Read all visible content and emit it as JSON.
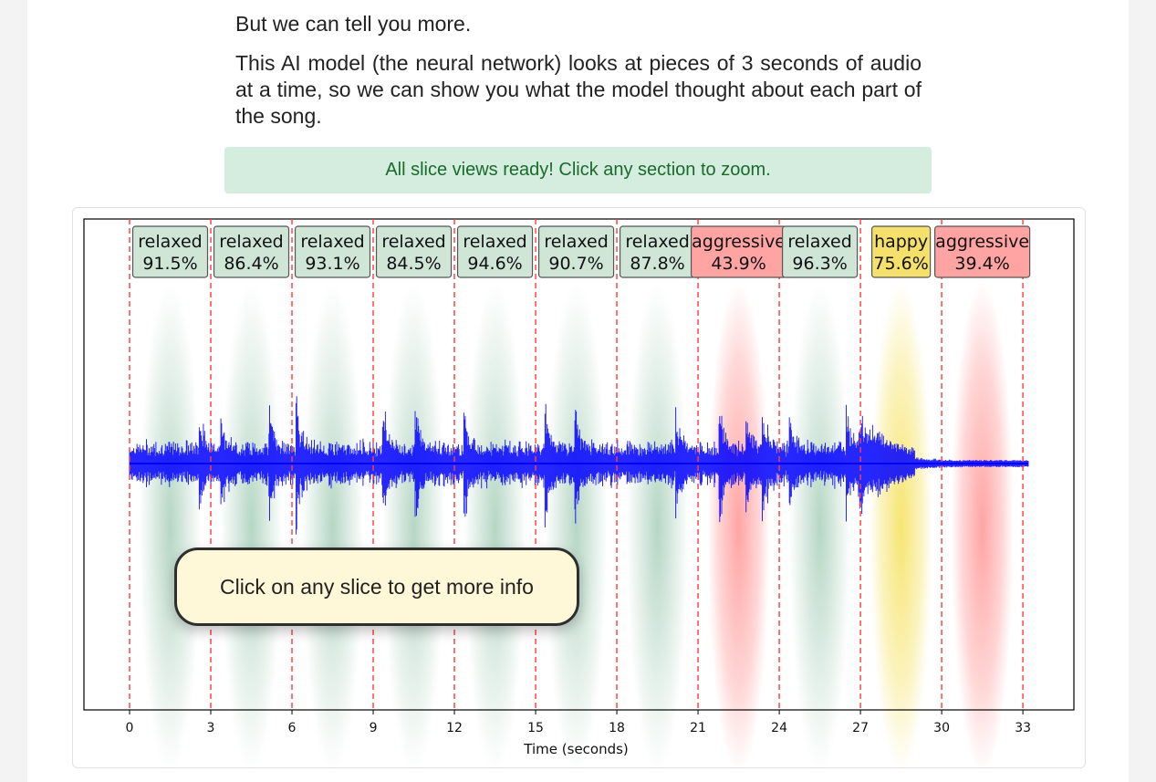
{
  "intro": {
    "line1": "But we can tell you more.",
    "line2": "This AI model (the neural network) looks at pieces of 3 seconds of audio at a time, so we can show you what the model thought about each part of the song."
  },
  "status": {
    "message": "All slice views ready! Click any section to zoom."
  },
  "tooltip": {
    "text": "Click on any slice to get more info"
  },
  "colors": {
    "relaxed": "#2e8b57",
    "aggressive": "#ff5a5a",
    "happy": "#f0d000",
    "waveform": "#0000ff",
    "slice_line": "#ff4040"
  },
  "chart_data": {
    "type": "waveform",
    "xlabel": "Time (seconds)",
    "xlim": [
      0,
      33.3
    ],
    "xticks": [
      0,
      3,
      6,
      9,
      12,
      15,
      18,
      21,
      24,
      27,
      30,
      33
    ],
    "slice_boundaries": [
      0,
      3,
      6,
      9,
      12,
      15,
      18,
      21,
      24,
      27,
      30,
      33
    ],
    "slices": [
      {
        "start": 0,
        "end": 3,
        "label": "relaxed",
        "confidence": "91.5%"
      },
      {
        "start": 3,
        "end": 6,
        "label": "relaxed",
        "confidence": "86.4%"
      },
      {
        "start": 6,
        "end": 9,
        "label": "relaxed",
        "confidence": "93.1%"
      },
      {
        "start": 9,
        "end": 12,
        "label": "relaxed",
        "confidence": "84.5%"
      },
      {
        "start": 12,
        "end": 15,
        "label": "relaxed",
        "confidence": "94.6%"
      },
      {
        "start": 15,
        "end": 18,
        "label": "relaxed",
        "confidence": "90.7%"
      },
      {
        "start": 18,
        "end": 21,
        "label": "relaxed",
        "confidence": "87.8%"
      },
      {
        "start": 21,
        "end": 24,
        "label": "aggressive",
        "confidence": "43.9%"
      },
      {
        "start": 24,
        "end": 27,
        "label": "relaxed",
        "confidence": "96.3%"
      },
      {
        "start": 27,
        "end": 30,
        "label": "happy",
        "confidence": "75.6%"
      },
      {
        "start": 30,
        "end": 33,
        "label": "aggressive",
        "confidence": "39.4%"
      }
    ]
  }
}
